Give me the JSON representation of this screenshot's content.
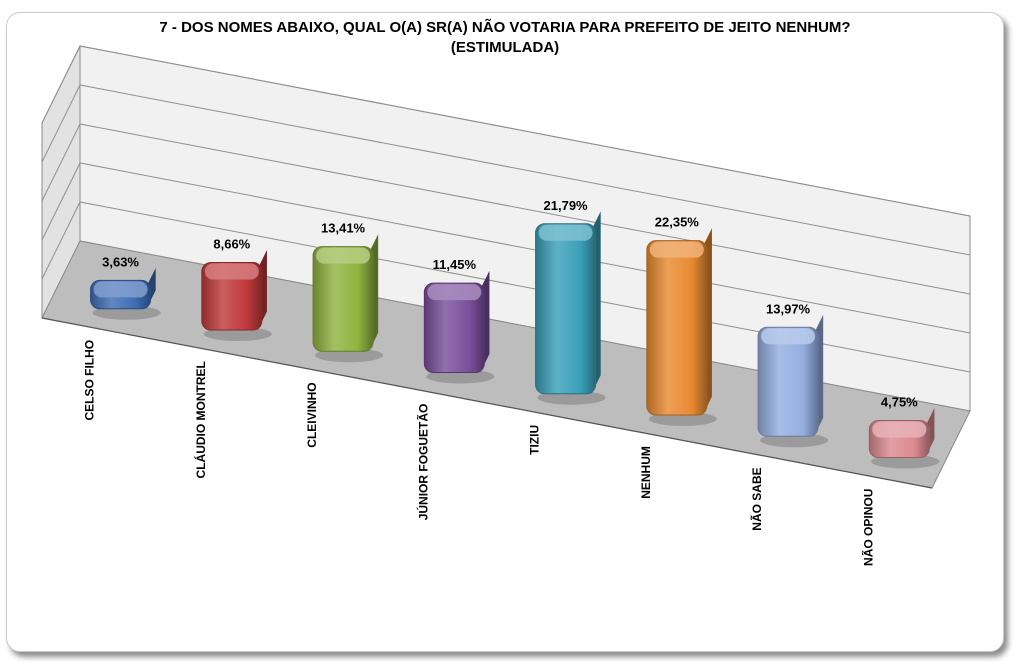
{
  "chart_data": {
    "type": "bar",
    "title": "7 -  DOS NOMES ABAIXO, QUAL O(A) SR(A) NÃO VOTARIA PARA PREFEITO DE JEITO NENHUM?",
    "subtitle": "(ESTIMULADA)",
    "categories": [
      "CELSO FILHO",
      "CLÁUDIO MONTREL",
      "CLEIVINHO",
      "JÚNIOR FOGUETÃO",
      "TIZIU",
      "NENHUM",
      "NÃO SABE",
      "NÃO OPINOU"
    ],
    "values": [
      3.63,
      8.66,
      13.41,
      11.45,
      21.79,
      22.35,
      13.97,
      4.75
    ],
    "value_labels": [
      "3,63%",
      "8,66%",
      "13,41%",
      "11,45%",
      "21,79%",
      "22,35%",
      "13,97%",
      "4,75%"
    ],
    "colors": [
      "#3e6db5",
      "#c0393b",
      "#8fb33f",
      "#7a4f9c",
      "#3aa0b8",
      "#e98a31",
      "#94afe0",
      "#db8a90"
    ],
    "ylim": [
      0,
      25
    ],
    "grid": true,
    "legend": "none",
    "style": "3d"
  }
}
